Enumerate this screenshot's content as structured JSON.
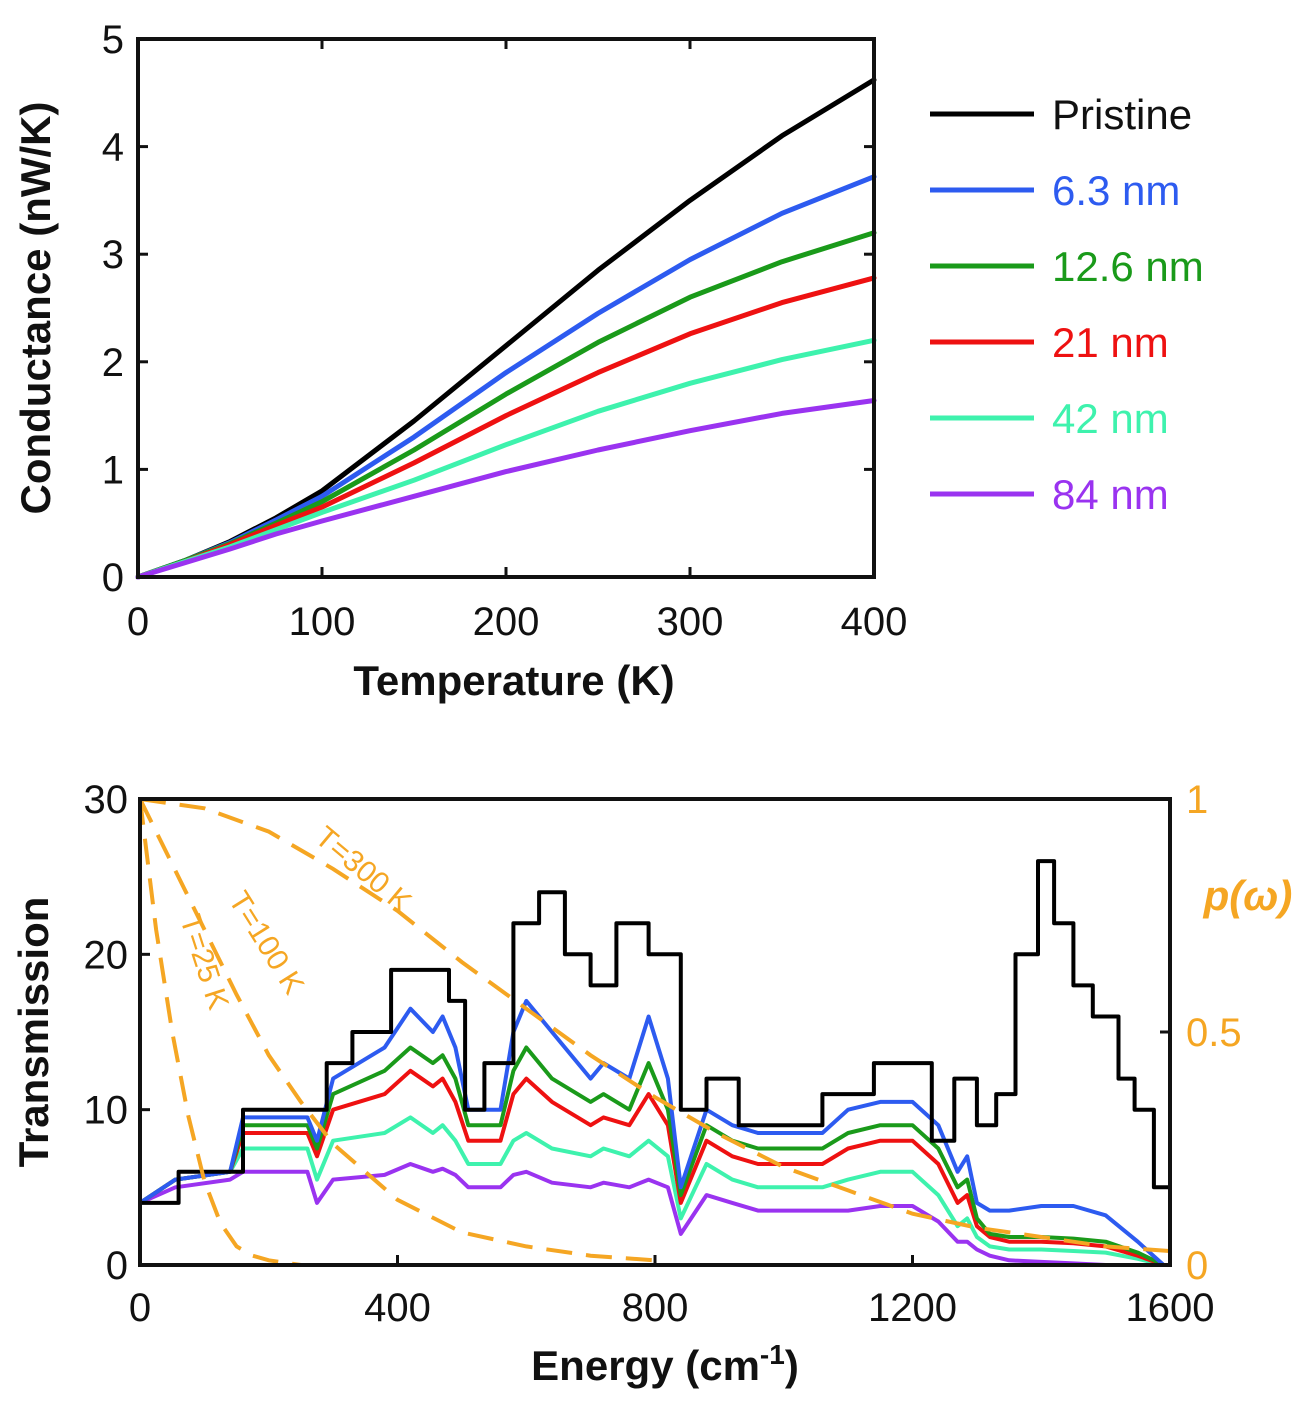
{
  "chart_data": [
    {
      "type": "line",
      "title": "",
      "xlabel": "Temperature (K)",
      "ylabel": "Conductance (nW/K)",
      "xlim": [
        0,
        400
      ],
      "ylim": [
        0,
        5
      ],
      "xticks": [
        "0",
        "100",
        "200",
        "300",
        "400"
      ],
      "yticks": [
        "0",
        "1",
        "2",
        "3",
        "4",
        "5"
      ],
      "grid": false,
      "legend_placement": "right-outside",
      "x": [
        0,
        25,
        50,
        75,
        100,
        150,
        200,
        250,
        300,
        350,
        400
      ],
      "series": [
        {
          "name": "Pristine",
          "color": "#000000",
          "values": [
            0,
            0.15,
            0.33,
            0.55,
            0.8,
            1.45,
            2.15,
            2.85,
            3.5,
            4.1,
            4.62
          ]
        },
        {
          "name": "6.3 nm",
          "color": "#2d5bf0",
          "values": [
            0,
            0.15,
            0.32,
            0.53,
            0.75,
            1.3,
            1.9,
            2.45,
            2.95,
            3.38,
            3.72
          ]
        },
        {
          "name": "12.6 nm",
          "color": "#1a9a1a",
          "values": [
            0,
            0.15,
            0.31,
            0.5,
            0.7,
            1.18,
            1.7,
            2.18,
            2.6,
            2.93,
            3.2
          ]
        },
        {
          "name": "21 nm",
          "color": "#ee1111",
          "values": [
            0,
            0.14,
            0.3,
            0.48,
            0.65,
            1.06,
            1.5,
            1.9,
            2.26,
            2.55,
            2.78
          ]
        },
        {
          "name": "42 nm",
          "color": "#3ef2ad",
          "values": [
            0,
            0.14,
            0.28,
            0.44,
            0.6,
            0.9,
            1.23,
            1.54,
            1.8,
            2.02,
            2.2
          ]
        },
        {
          "name": "84 nm",
          "color": "#9a33f0",
          "values": [
            0,
            0.13,
            0.26,
            0.4,
            0.52,
            0.75,
            0.98,
            1.18,
            1.36,
            1.52,
            1.64
          ]
        }
      ]
    },
    {
      "type": "line",
      "title": "",
      "xlabel": "Energy (cm",
      "xlabel_superscript": "-1",
      "xlabel_close": ")",
      "ylabel": "Transmission",
      "y2label": "p(ω)",
      "xlim": [
        0,
        1600
      ],
      "ylim": [
        0,
        30
      ],
      "y2lim": [
        0,
        1
      ],
      "xticks": [
        "0",
        "400",
        "800",
        "1200",
        "1600"
      ],
      "yticks": [
        "0",
        "10",
        "20",
        "30"
      ],
      "y2ticks": [
        "0",
        "0.5",
        "1"
      ],
      "grid": false,
      "transmission_series": [
        {
          "name": "Pristine",
          "color": "#000000",
          "step": true,
          "x": [
            0,
            60,
            160,
            290,
            330,
            390,
            440,
            480,
            505,
            535,
            580,
            620,
            660,
            700,
            740,
            790,
            840,
            880,
            930,
            960,
            1060,
            1140,
            1230,
            1265,
            1300,
            1330,
            1360,
            1395,
            1420,
            1450,
            1480,
            1520,
            1545,
            1575,
            1600
          ],
          "values": [
            4,
            6,
            10,
            13,
            15,
            19,
            19,
            17,
            10,
            13,
            22,
            24,
            20,
            18,
            22,
            20,
            10,
            12,
            9,
            9,
            11,
            13,
            8,
            12,
            9,
            11,
            20,
            26,
            22,
            18,
            16,
            12,
            10,
            5,
            0
          ]
        },
        {
          "name": "6.3 nm",
          "color": "#2d5bf0",
          "step": false,
          "x": [
            0,
            55,
            140,
            160,
            260,
            275,
            300,
            380,
            420,
            455,
            470,
            490,
            510,
            560,
            580,
            600,
            640,
            700,
            720,
            760,
            790,
            820,
            840,
            880,
            920,
            960,
            1060,
            1100,
            1150,
            1200,
            1240,
            1270,
            1285,
            1300,
            1320,
            1350,
            1400,
            1450,
            1500,
            1550,
            1590
          ],
          "values": [
            4,
            5.5,
            6,
            9.5,
            9.5,
            8,
            12,
            14,
            16.5,
            15,
            16,
            14,
            10,
            10,
            15,
            17,
            15,
            12,
            13,
            12,
            16,
            12,
            5,
            10,
            9,
            8.5,
            8.5,
            10,
            10.5,
            10.5,
            9,
            6,
            7,
            4,
            3.5,
            3.5,
            3.8,
            3.8,
            3.2,
            1.5,
            0
          ]
        },
        {
          "name": "12.6 nm",
          "color": "#1a9a1a",
          "step": false,
          "x": [
            0,
            55,
            140,
            160,
            260,
            275,
            300,
            380,
            420,
            455,
            470,
            490,
            510,
            560,
            580,
            600,
            640,
            700,
            720,
            760,
            790,
            820,
            840,
            880,
            920,
            960,
            1060,
            1100,
            1150,
            1200,
            1240,
            1270,
            1285,
            1300,
            1320,
            1350,
            1400,
            1450,
            1500,
            1550,
            1590
          ],
          "values": [
            4,
            5.5,
            6,
            9,
            9,
            7.5,
            11,
            12.5,
            14,
            13,
            13.5,
            12,
            9,
            9,
            12.5,
            14,
            12,
            10.5,
            11,
            10,
            13,
            10,
            4.5,
            9,
            8,
            7.5,
            7.5,
            8.5,
            9,
            9,
            7.5,
            5,
            5.5,
            3,
            2,
            1.8,
            1.8,
            1.7,
            1.5,
            0.8,
            0
          ]
        },
        {
          "name": "21 nm",
          "color": "#ee1111",
          "step": false,
          "x": [
            0,
            55,
            140,
            160,
            260,
            275,
            300,
            380,
            420,
            455,
            470,
            490,
            510,
            560,
            580,
            600,
            640,
            700,
            720,
            760,
            790,
            820,
            840,
            880,
            920,
            960,
            1060,
            1100,
            1150,
            1200,
            1240,
            1270,
            1285,
            1300,
            1320,
            1350,
            1400,
            1450,
            1500,
            1550,
            1590
          ],
          "values": [
            4,
            5.5,
            6,
            8.5,
            8.5,
            7,
            10,
            11,
            12.5,
            11.5,
            12,
            10.5,
            8,
            8,
            11,
            12,
            10.5,
            9,
            9.5,
            9,
            11,
            9,
            4,
            8,
            7,
            6.5,
            6.5,
            7.5,
            8,
            8,
            6.5,
            4,
            4.5,
            2.5,
            1.8,
            1.5,
            1.5,
            1.4,
            1.2,
            0.6,
            0
          ]
        },
        {
          "name": "42 nm",
          "color": "#3ef2ad",
          "step": false,
          "x": [
            0,
            55,
            140,
            160,
            260,
            275,
            300,
            380,
            420,
            455,
            470,
            490,
            510,
            560,
            580,
            600,
            640,
            700,
            720,
            760,
            790,
            820,
            840,
            880,
            920,
            960,
            1060,
            1100,
            1150,
            1200,
            1240,
            1270,
            1285,
            1300,
            1320,
            1350,
            1400,
            1450,
            1500,
            1550,
            1590
          ],
          "values": [
            4,
            5.5,
            6,
            7.5,
            7.5,
            5.5,
            8,
            8.5,
            9.5,
            8.5,
            9,
            8,
            6.5,
            6.5,
            8,
            8.5,
            7.5,
            7,
            7.5,
            7,
            8,
            7,
            3,
            6.5,
            5.5,
            5,
            5,
            5.5,
            6,
            6,
            4.5,
            2.5,
            3,
            1.8,
            1.2,
            1,
            1,
            0.9,
            0.8,
            0.4,
            0
          ]
        },
        {
          "name": "84 nm",
          "color": "#9a33f0",
          "step": false,
          "x": [
            0,
            55,
            140,
            160,
            260,
            275,
            300,
            380,
            420,
            455,
            470,
            490,
            510,
            560,
            580,
            600,
            640,
            700,
            720,
            760,
            790,
            820,
            840,
            880,
            920,
            960,
            1060,
            1100,
            1150,
            1200,
            1240,
            1270,
            1285,
            1300,
            1320,
            1350,
            1400,
            1450,
            1500,
            1550,
            1590
          ],
          "values": [
            4,
            5,
            5.5,
            6,
            6,
            4,
            5.5,
            5.8,
            6.5,
            6,
            6.2,
            5.8,
            5,
            5,
            5.8,
            6,
            5.3,
            5,
            5.3,
            5,
            5.5,
            5,
            2,
            4.5,
            4,
            3.5,
            3.5,
            3.5,
            3.8,
            3.8,
            2.8,
            1.5,
            1.5,
            1,
            0.6,
            0.3,
            0.2,
            0.1,
            0,
            0,
            0
          ]
        }
      ],
      "occupation_series": [
        {
          "name": "T=25 K",
          "color": "#f5a623",
          "x": [
            0,
            25,
            50,
            75,
            100,
            125,
            150,
            175,
            200,
            250,
            300
          ],
          "values": [
            1,
            0.72,
            0.5,
            0.32,
            0.18,
            0.09,
            0.04,
            0.02,
            0.01,
            0,
            0
          ]
        },
        {
          "name": "T=100 K",
          "color": "#f5a623",
          "x": [
            0,
            50,
            100,
            150,
            200,
            250,
            300,
            400,
            500,
            600,
            700,
            800
          ],
          "values": [
            1,
            0.86,
            0.72,
            0.58,
            0.45,
            0.35,
            0.26,
            0.14,
            0.07,
            0.04,
            0.02,
            0.01
          ]
        },
        {
          "name": "T=300 K",
          "color": "#f5a623",
          "x": [
            0,
            100,
            200,
            300,
            400,
            500,
            600,
            700,
            800,
            900,
            1000,
            1100,
            1200,
            1300,
            1400,
            1500,
            1600
          ],
          "values": [
            1,
            0.98,
            0.93,
            0.85,
            0.76,
            0.65,
            0.55,
            0.45,
            0.36,
            0.28,
            0.21,
            0.16,
            0.11,
            0.08,
            0.06,
            0.04,
            0.03
          ]
        }
      ]
    }
  ],
  "colors": {
    "axis": "#111111",
    "secondary_axis": "#f5a623"
  }
}
